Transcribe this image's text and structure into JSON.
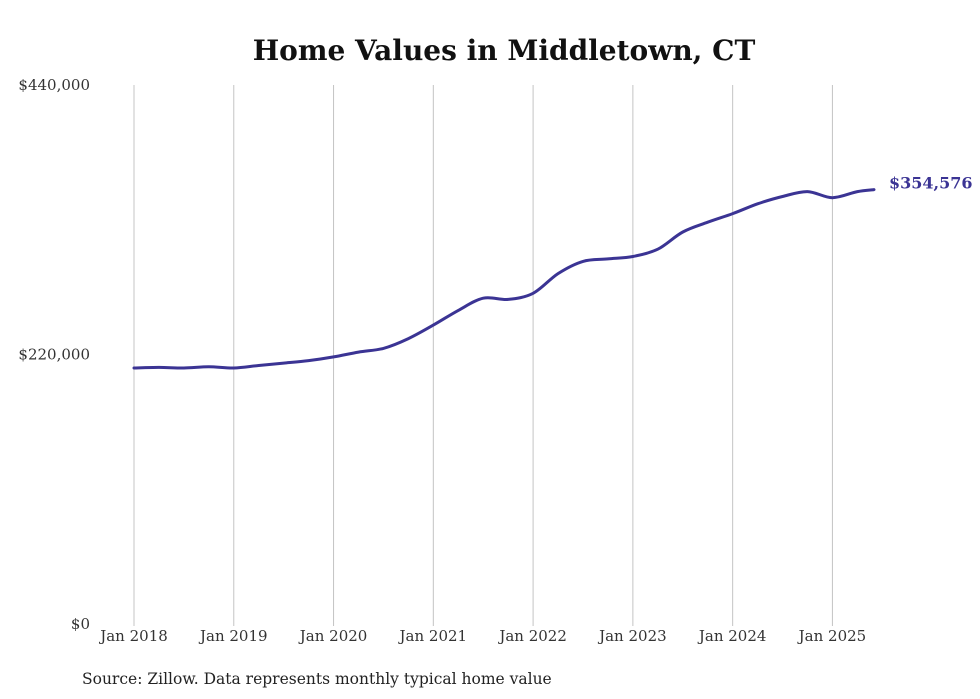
{
  "colors": {
    "line": "#3b3494",
    "grid": "#c4c4c4",
    "text": "#333333"
  },
  "source": "Source: Zillow. Data represents monthly typical home value",
  "chart_data": {
    "type": "line",
    "title": "Home Values in Middletown, CT",
    "xlabel": "",
    "ylabel": "",
    "ylim": [
      0,
      440000
    ],
    "y_ticks": [
      "$0",
      "$220,000",
      "$440,000"
    ],
    "y_tick_values": [
      0,
      220000,
      440000
    ],
    "x_ticks": [
      "Jan 2018",
      "Jan 2019",
      "Jan 2020",
      "Jan 2021",
      "Jan 2022",
      "Jan 2023",
      "Jan 2024",
      "Jan 2025"
    ],
    "x_tick_values": [
      "2018-01",
      "2019-01",
      "2020-01",
      "2021-01",
      "2022-01",
      "2023-01",
      "2024-01",
      "2025-01"
    ],
    "xlim": [
      "2018-01",
      "2025-06"
    ],
    "grid": "vertical",
    "end_label": "$354,576",
    "series": [
      {
        "x": [
          "2018-01",
          "2018-04",
          "2018-07",
          "2018-10",
          "2019-01",
          "2019-04",
          "2019-07",
          "2019-10",
          "2020-01",
          "2020-04",
          "2020-07",
          "2020-10",
          "2021-01",
          "2021-04",
          "2021-07",
          "2021-10",
          "2022-01",
          "2022-04",
          "2022-07",
          "2022-10",
          "2023-01",
          "2023-04",
          "2023-07",
          "2023-10",
          "2024-01",
          "2024-04",
          "2024-07",
          "2024-10",
          "2025-01",
          "2025-04",
          "2025-06"
        ],
        "values": [
          209000,
          209500,
          209000,
          210000,
          209000,
          211000,
          213000,
          215000,
          218000,
          222000,
          225000,
          233000,
          244000,
          256000,
          266000,
          265000,
          270000,
          286000,
          296000,
          298000,
          300000,
          306000,
          320000,
          328000,
          335000,
          343000,
          349000,
          353000,
          348000,
          353000,
          354576
        ]
      }
    ]
  }
}
